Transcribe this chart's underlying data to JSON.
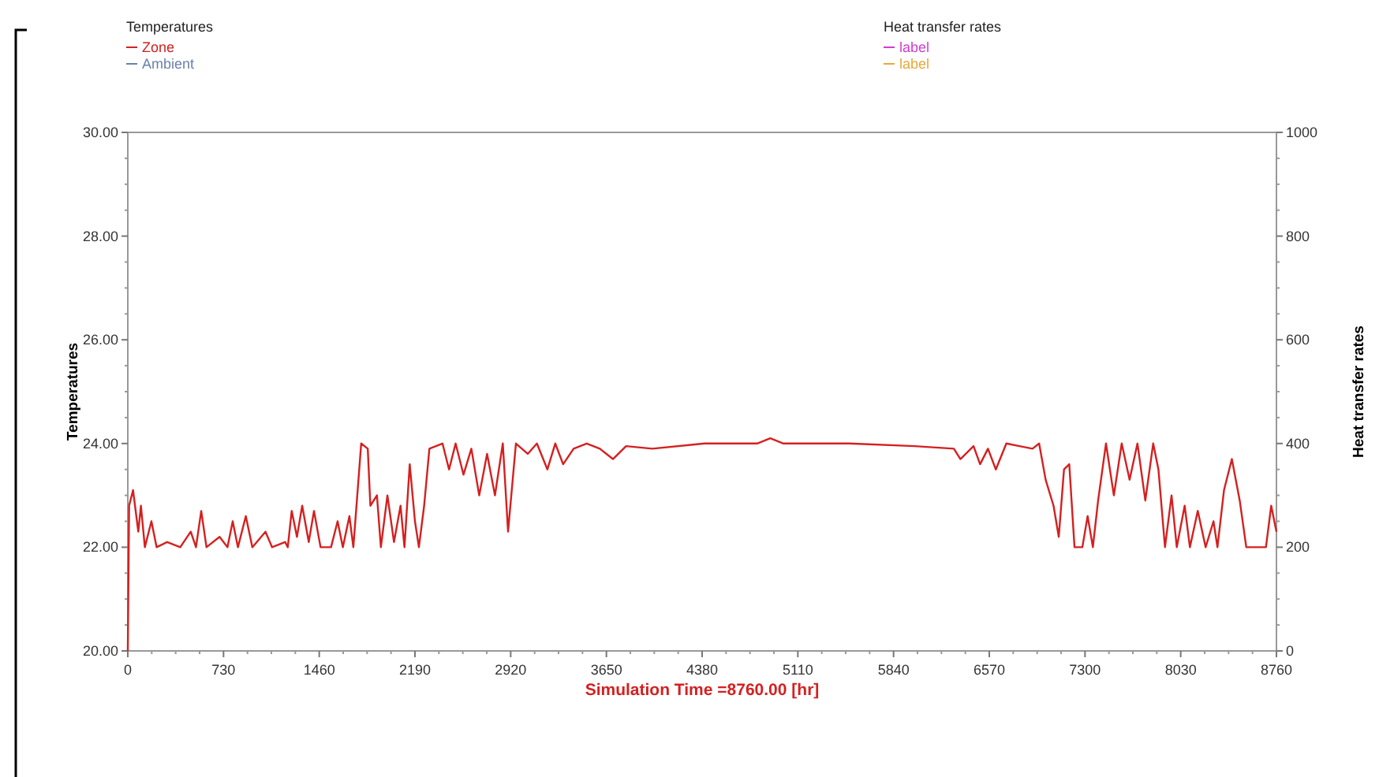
{
  "chart_data": {
    "type": "line",
    "xlabel": "Simulation Time =8760.00 [hr]",
    "ylabel": "Temperatures",
    "y2label": "Heat transfer rates",
    "xlim": [
      0,
      8760
    ],
    "xticks": [
      0,
      730,
      1460,
      2190,
      2920,
      3650,
      4380,
      5110,
      5840,
      6570,
      7300,
      8030,
      8760
    ],
    "ylim": [
      20,
      30
    ],
    "yticks": [
      {
        "value": 20,
        "label": "20.00"
      },
      {
        "value": 22,
        "label": "22.00"
      },
      {
        "value": 24,
        "label": "24.00"
      },
      {
        "value": 26,
        "label": "26.00"
      },
      {
        "value": 28,
        "label": "28.00"
      },
      {
        "value": 30,
        "label": "30.00"
      }
    ],
    "y2lim": [
      0,
      1000
    ],
    "y2ticks": [
      0,
      200,
      400,
      600,
      800,
      1000
    ],
    "grid": false,
    "legend": "top",
    "line_style": "solid",
    "series": [
      {
        "name": "Zone",
        "color": "#d42020",
        "x": [
          0,
          10,
          40,
          80,
          100,
          130,
          180,
          220,
          300,
          400,
          480,
          520,
          560,
          600,
          700,
          760,
          800,
          840,
          900,
          950,
          1050,
          1100,
          1200,
          1220,
          1250,
          1290,
          1330,
          1380,
          1420,
          1470,
          1550,
          1600,
          1640,
          1690,
          1720,
          1780,
          1830,
          1850,
          1900,
          1930,
          1980,
          2030,
          2080,
          2110,
          2150,
          2190,
          2220,
          2260,
          2300,
          2400,
          2450,
          2500,
          2560,
          2620,
          2680,
          2740,
          2800,
          2860,
          2900,
          2960,
          3050,
          3120,
          3200,
          3260,
          3320,
          3400,
          3500,
          3600,
          3700,
          3800,
          4000,
          4400,
          4800,
          4900,
          5000,
          5500,
          6000,
          6300,
          6350,
          6450,
          6500,
          6560,
          6620,
          6700,
          6800,
          6900,
          6950,
          7000,
          7060,
          7100,
          7140,
          7180,
          7220,
          7280,
          7320,
          7360,
          7400,
          7460,
          7520,
          7580,
          7640,
          7700,
          7760,
          7820,
          7860,
          7910,
          7960,
          8000,
          8060,
          8100,
          8160,
          8220,
          8280,
          8310,
          8360,
          8420,
          8480,
          8530,
          8600,
          8680,
          8720,
          8760
        ],
        "values": [
          20,
          22.8,
          23.1,
          22.3,
          22.8,
          22,
          22.5,
          22,
          22.1,
          22,
          22.3,
          22,
          22.7,
          22,
          22.2,
          22,
          22.5,
          22,
          22.6,
          22,
          22.3,
          22,
          22.1,
          22,
          22.7,
          22.2,
          22.8,
          22.1,
          22.7,
          22,
          22,
          22.5,
          22,
          22.6,
          22,
          24,
          23.9,
          22.8,
          23,
          22,
          23,
          22.1,
          22.8,
          22,
          23.6,
          22.5,
          22,
          22.8,
          23.9,
          24,
          23.5,
          24,
          23.4,
          23.9,
          23,
          23.8,
          23,
          24,
          22.3,
          24,
          23.8,
          24,
          23.5,
          24,
          23.6,
          23.9,
          24,
          23.9,
          23.7,
          23.95,
          23.9,
          24,
          24,
          24.1,
          24,
          24,
          23.95,
          23.9,
          23.7,
          23.95,
          23.6,
          23.9,
          23.5,
          24,
          23.95,
          23.9,
          24,
          23.3,
          22.8,
          22.2,
          23.5,
          23.6,
          22,
          22,
          22.6,
          22,
          22.9,
          24,
          23,
          24,
          23.3,
          24,
          22.9,
          24,
          23.5,
          22,
          23,
          22,
          22.8,
          22,
          22.7,
          22,
          22.5,
          22,
          23.1,
          23.7,
          22.9,
          22,
          22,
          22,
          22.8,
          22.3
        ]
      },
      {
        "name": "Ambient",
        "color": "#6a82a8"
      },
      {
        "name": "label",
        "color": "#d23cd2",
        "axis": "y2"
      },
      {
        "name": "label",
        "color": "#e8a838",
        "axis": "y2"
      }
    ]
  }
}
